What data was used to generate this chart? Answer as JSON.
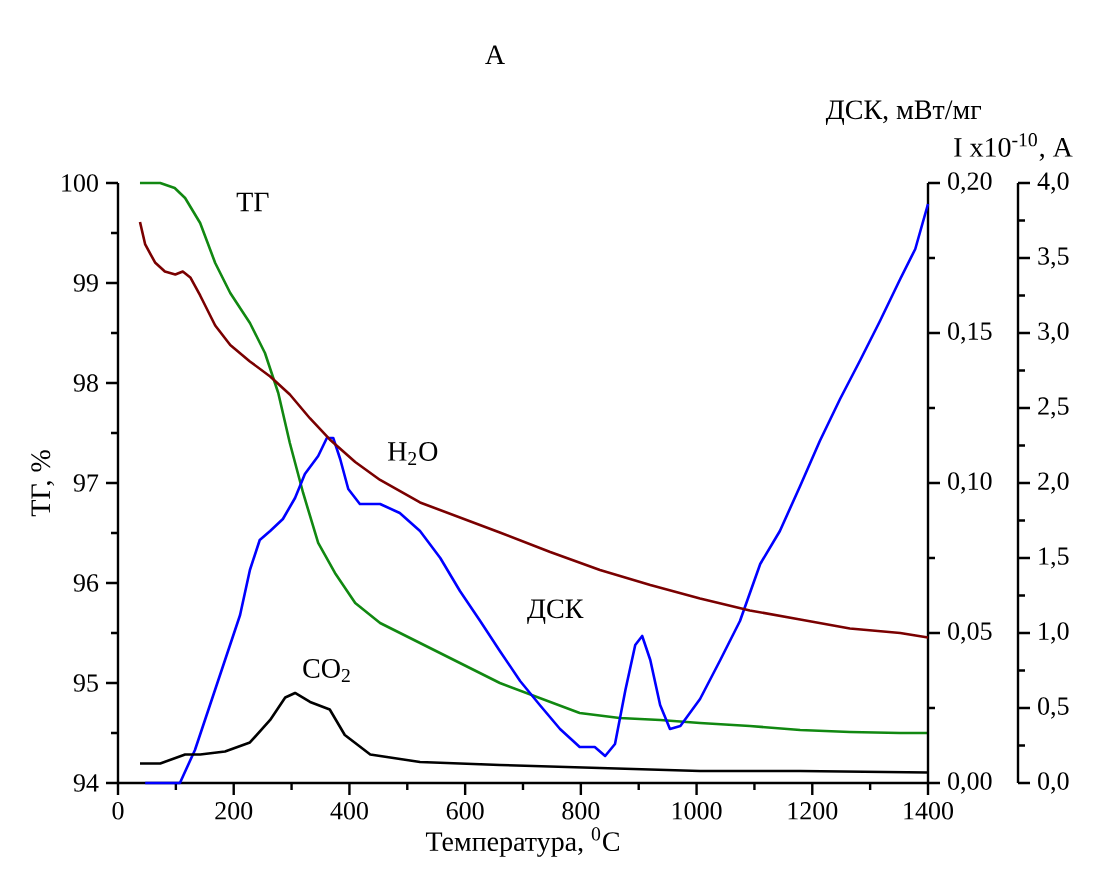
{
  "chart_data": {
    "type": "line",
    "title": "А",
    "xlabel": "Температура, $^{0}$C",
    "ylabel": "ТГ, %",
    "y2label": "ДСК, мВт/мг",
    "y3label": "I x10$^{-10}$, A",
    "xlim": [
      0,
      1400
    ],
    "xticks": [
      0,
      200,
      400,
      600,
      800,
      1000,
      1200,
      1400
    ],
    "ylim": [
      94,
      100
    ],
    "yticks": [
      94,
      95,
      96,
      97,
      98,
      99,
      100
    ],
    "y2lim": [
      0,
      0.2
    ],
    "y2ticks": [
      {
        "value": 0,
        "label": "0,00"
      },
      {
        "value": 0.05,
        "label": "0,05"
      },
      {
        "value": 0.1,
        "label": "0,10"
      },
      {
        "value": 0.15,
        "label": "0,15"
      },
      {
        "value": 0.2,
        "label": "0,20"
      }
    ],
    "y3lim": [
      0,
      4
    ],
    "y3ticks": [
      {
        "value": 0,
        "label": "0,0"
      },
      {
        "value": 0.5,
        "label": "0,5"
      },
      {
        "value": 1,
        "label": "1,0"
      },
      {
        "value": 1.5,
        "label": "1,5"
      },
      {
        "value": 2,
        "label": "2,0"
      },
      {
        "value": 2.5,
        "label": "2,5"
      },
      {
        "value": 3,
        "label": "3,0"
      },
      {
        "value": 3.5,
        "label": "3,5"
      },
      {
        "value": 4,
        "label": "4,0"
      }
    ],
    "grid": false,
    "marker": "none",
    "line_style": "solid",
    "series": [
      {
        "name": "ТГ",
        "color": "#118811",
        "x": [
          38,
          73,
          98,
          116,
          142,
          168,
          194,
          228,
          254,
          277,
          297,
          320,
          346,
          375,
          410,
          453,
          522,
          591,
          660,
          729,
          798,
          867,
          937,
          1006,
          1092,
          1179,
          1265,
          1352,
          1400
        ],
        "values": [
          100.0,
          100.0,
          99.95,
          99.85,
          99.6,
          99.2,
          98.9,
          98.6,
          98.3,
          97.9,
          97.4,
          96.9,
          96.4,
          96.1,
          95.8,
          95.6,
          95.4,
          95.2,
          95.0,
          94.85,
          94.7,
          94.65,
          94.63,
          94.6,
          94.57,
          94.53,
          94.51,
          94.5,
          94.5
        ]
      },
      {
        "name": "H$_{2}$O",
        "color": "#7a0000",
        "axis": "y3",
        "x": [
          38,
          47,
          64,
          81,
          99,
          112,
          125,
          142,
          168,
          194,
          228,
          263,
          297,
          332,
          366,
          410,
          453,
          522,
          591,
          660,
          747,
          833,
          920,
          1006,
          1092,
          1179,
          1265,
          1352,
          1400
        ],
        "values": [
          3.74,
          3.59,
          3.47,
          3.41,
          3.39,
          3.41,
          3.37,
          3.25,
          3.05,
          2.92,
          2.81,
          2.71,
          2.59,
          2.43,
          2.29,
          2.14,
          2.02,
          1.87,
          1.77,
          1.67,
          1.54,
          1.42,
          1.32,
          1.23,
          1.15,
          1.09,
          1.03,
          1.0,
          0.97
        ]
      },
      {
        "name": "ДСК",
        "color": "#0000ff",
        "axis": "y2",
        "x": [
          47,
          107,
          133,
          159,
          185,
          211,
          228,
          245,
          263,
          285,
          306,
          323,
          346,
          361,
          372,
          384,
          398,
          418,
          453,
          487,
          522,
          557,
          591,
          626,
          660,
          695,
          729,
          764,
          798,
          824,
          842,
          859,
          877,
          894,
          906,
          920,
          937,
          954,
          972,
          1006,
          1041,
          1075,
          1110,
          1144,
          1179,
          1213,
          1248,
          1283,
          1317,
          1352,
          1378,
          1400
        ],
        "values": [
          0.0,
          0.0,
          0.011,
          0.026,
          0.041,
          0.056,
          0.071,
          0.081,
          0.084,
          0.088,
          0.095,
          0.103,
          0.109,
          0.115,
          0.115,
          0.108,
          0.098,
          0.093,
          0.093,
          0.09,
          0.084,
          0.075,
          0.064,
          0.054,
          0.044,
          0.034,
          0.026,
          0.018,
          0.012,
          0.012,
          0.009,
          0.013,
          0.031,
          0.046,
          0.049,
          0.041,
          0.026,
          0.018,
          0.019,
          0.028,
          0.041,
          0.054,
          0.073,
          0.084,
          0.099,
          0.114,
          0.128,
          0.141,
          0.154,
          0.168,
          0.178,
          0.193
        ]
      },
      {
        "name": "CO$_{2}$",
        "color": "#000000",
        "axis": "y3",
        "x": [
          38,
          73,
          116,
          142,
          185,
          228,
          263,
          289,
          306,
          332,
          366,
          392,
          436,
          522,
          660,
          833,
          1006,
          1179,
          1400
        ],
        "values": [
          0.13,
          0.13,
          0.19,
          0.19,
          0.21,
          0.27,
          0.42,
          0.57,
          0.6,
          0.54,
          0.49,
          0.32,
          0.19,
          0.14,
          0.12,
          0.1,
          0.08,
          0.08,
          0.07
        ]
      }
    ]
  }
}
